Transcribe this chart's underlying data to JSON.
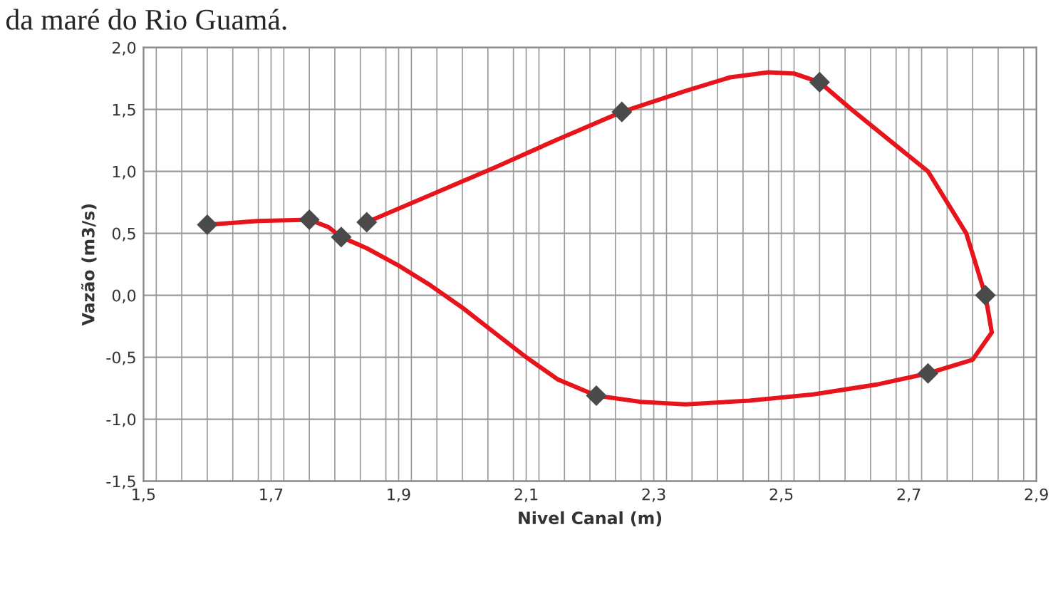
{
  "chart_data": {
    "type": "line",
    "title": "da maré do Rio Guamá.",
    "xlabel": "Nivel Canal (m)",
    "ylabel": "Vazão (m3/s)",
    "series": [
      {
        "color": "#e8141c",
        "marker": "none",
        "x": [
          1.6,
          1.68,
          1.76,
          1.79,
          1.81,
          1.85,
          1.9,
          1.95,
          2.0,
          2.05,
          2.1,
          2.15,
          2.21,
          2.28,
          2.35,
          2.45,
          2.55,
          2.65,
          2.73,
          2.8,
          2.83,
          2.82,
          2.79,
          2.73,
          2.61,
          2.56,
          2.52,
          2.48,
          2.42,
          2.35,
          2.25,
          2.15,
          2.05,
          1.95,
          1.85
        ],
        "values": [
          0.57,
          0.6,
          0.61,
          0.55,
          0.47,
          0.38,
          0.24,
          0.08,
          -0.1,
          -0.3,
          -0.5,
          -0.68,
          -0.81,
          -0.86,
          -0.88,
          -0.85,
          -0.8,
          -0.72,
          -0.63,
          -0.52,
          -0.3,
          0.0,
          0.5,
          1.0,
          1.5,
          1.72,
          1.79,
          1.8,
          1.76,
          1.65,
          1.48,
          1.26,
          1.03,
          0.81,
          0.59
        ]
      },
      {
        "type": "scatter",
        "color": "#4a4a4a",
        "marker": "diamond",
        "x": [
          1.6,
          1.76,
          1.81,
          2.21,
          2.73,
          2.82,
          2.56,
          2.25,
          1.85
        ],
        "values": [
          0.57,
          0.61,
          0.47,
          -0.81,
          -0.63,
          0.0,
          1.72,
          1.48,
          0.59
        ]
      }
    ],
    "line_style": "solid",
    "grid": true,
    "xlim": [
      1.5,
      2.9
    ],
    "ylim": [
      -1.5,
      2.0
    ],
    "xticks": [
      {
        "value": 1.5,
        "label": "1,5"
      },
      {
        "value": 1.7,
        "label": "1,7"
      },
      {
        "value": 1.9,
        "label": "1,9"
      },
      {
        "value": 2.1,
        "label": "2,1"
      },
      {
        "value": 2.3,
        "label": "2,3"
      },
      {
        "value": 2.5,
        "label": "2,5"
      },
      {
        "value": 2.7,
        "label": "2,7"
      },
      {
        "value": 2.9,
        "label": "2,9"
      }
    ],
    "yticks": [
      {
        "value": -1.5,
        "label": "-1,5"
      },
      {
        "value": -1.0,
        "label": "-1,0"
      },
      {
        "value": -0.5,
        "label": "-0,5"
      },
      {
        "value": 0.0,
        "label": "0,0"
      },
      {
        "value": 0.5,
        "label": "0,5"
      },
      {
        "value": 1.0,
        "label": "1,0"
      },
      {
        "value": 1.5,
        "label": "1,5"
      },
      {
        "value": 2.0,
        "label": "2,0"
      }
    ]
  }
}
